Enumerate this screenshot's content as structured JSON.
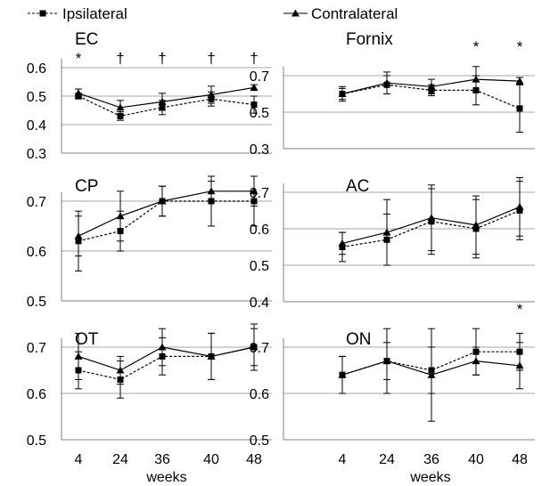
{
  "chart_data": {
    "type": "line",
    "x_categories": [
      "4",
      "24",
      "36",
      "40",
      "48"
    ],
    "xlabel": "weeks",
    "legend": {
      "position": "top",
      "entries": [
        {
          "name": "Ipsilateral",
          "line": "dashed",
          "marker": "square"
        },
        {
          "name": "Contralateral",
          "line": "solid",
          "marker": "triangle"
        }
      ]
    },
    "grid": "horizontal",
    "colors": {
      "lines": "#000000",
      "grid": "#a6a6a6",
      "axis": "#808080"
    },
    "panels": [
      {
        "title": "EC",
        "ylim": [
          0.3,
          0.6
        ],
        "yticks": [
          "0.3",
          "0.4",
          "0.5",
          "0.6"
        ],
        "annotations": [
          "*",
          "†",
          "†",
          "†",
          "†"
        ],
        "series": [
          {
            "name": "Ipsilateral",
            "values": [
              0.5,
              0.43,
              0.46,
              0.49,
              0.47
            ],
            "errors": [
              0.01,
              0.015,
              0.025,
              0.025,
              0.03
            ]
          },
          {
            "name": "Contralateral",
            "values": [
              0.51,
              0.46,
              0.48,
              0.505,
              0.53
            ],
            "errors": [
              0.015,
              0.025,
              0.03,
              0.03,
              0.01
            ]
          }
        ]
      },
      {
        "title": "Fornix",
        "ylim": [
          0.3,
          0.7
        ],
        "yticks": [
          "0.3",
          "0.5",
          "0.7"
        ],
        "annotations": [
          "",
          "",
          "",
          "*",
          "*"
        ],
        "series": [
          {
            "name": "Ipsilateral",
            "values": [
              0.6,
              0.65,
              0.62,
              0.62,
              0.52
            ],
            "errors": [
              0.03,
              0.05,
              0.03,
              0.08,
              0.13
            ]
          },
          {
            "name": "Contralateral",
            "values": [
              0.6,
              0.66,
              0.64,
              0.68,
              0.67
            ],
            "errors": [
              0.04,
              0.06,
              0.04,
              0.07,
              0.02
            ]
          }
        ]
      },
      {
        "title": "CP",
        "ylim": [
          0.5,
          0.7
        ],
        "yticks": [
          "0.5",
          "0.6",
          "0.7"
        ],
        "annotations": [],
        "series": [
          {
            "name": "Ipsilateral",
            "values": [
              0.62,
              0.64,
              0.7,
              0.7,
              0.7
            ],
            "errors": [
              0.06,
              0.04,
              0.03,
              0.05,
              0.05
            ]
          },
          {
            "name": "Contralateral",
            "values": [
              0.63,
              0.67,
              0.7,
              0.72,
              0.72
            ],
            "errors": [
              0.04,
              0.05,
              0.03,
              0.02,
              0.03
            ]
          }
        ]
      },
      {
        "title": "AC",
        "ylim": [
          0.4,
          0.7
        ],
        "yticks": [
          "0.4",
          "0.5",
          "0.6",
          "0.7"
        ],
        "annotations": [],
        "series": [
          {
            "name": "Ipsilateral",
            "values": [
              0.55,
              0.57,
              0.62,
              0.6,
              0.65
            ],
            "errors": [
              0.04,
              0.07,
              0.09,
              0.08,
              0.08
            ]
          },
          {
            "name": "Contralateral",
            "values": [
              0.56,
              0.59,
              0.63,
              0.61,
              0.66
            ],
            "errors": [
              0.03,
              0.09,
              0.09,
              0.08,
              0.08
            ]
          }
        ]
      },
      {
        "title": "OT",
        "ylim": [
          0.5,
          0.7
        ],
        "yticks": [
          "0.5",
          "0.6",
          "0.7"
        ],
        "annotations": [],
        "series": [
          {
            "name": "Ipsilateral",
            "values": [
              0.65,
              0.63,
              0.68,
              0.68,
              0.7
            ],
            "errors": [
              0.04,
              0.04,
              0.04,
              0.05,
              0.05
            ]
          },
          {
            "name": "Contralateral",
            "values": [
              0.68,
              0.65,
              0.7,
              0.68,
              0.7
            ],
            "errors": [
              0.05,
              0.03,
              0.04,
              0.05,
              0.04
            ]
          }
        ]
      },
      {
        "title": "ON",
        "ylim": [
          0.5,
          0.7
        ],
        "yticks": [
          "0.5",
          "0.6",
          "0.7"
        ],
        "annotations": [
          "",
          "",
          "",
          "",
          "*"
        ],
        "series": [
          {
            "name": "Ipsilateral",
            "values": [
              0.64,
              0.67,
              0.65,
              0.69,
              0.69
            ],
            "errors": [
              0.04,
              0.04,
              0.05,
              0.05,
              0.04
            ]
          },
          {
            "name": "Contralateral",
            "values": [
              0.64,
              0.67,
              0.64,
              0.67,
              0.66
            ],
            "errors": [
              0.04,
              0.07,
              0.1,
              0.03,
              0.05
            ]
          }
        ]
      }
    ]
  }
}
